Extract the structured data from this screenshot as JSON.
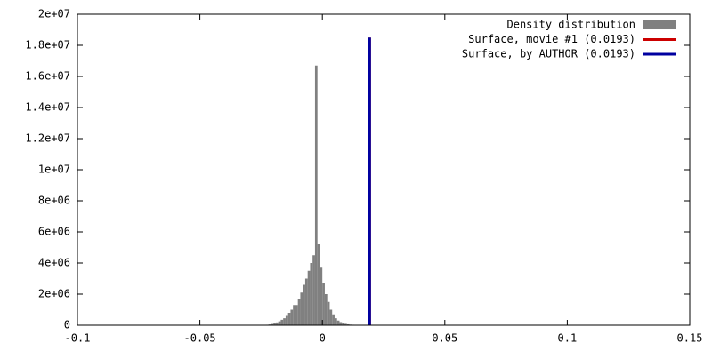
{
  "chart_data": {
    "type": "histogram",
    "name": "Density distribution",
    "color": "#808080",
    "bins": [
      -0.025,
      -0.024,
      -0.023,
      -0.022,
      -0.021,
      -0.02,
      -0.019,
      -0.018,
      -0.017,
      -0.016,
      -0.015,
      -0.014,
      -0.013,
      -0.012,
      -0.011,
      -0.01,
      -0.009,
      -0.008,
      -0.007,
      -0.006,
      -0.005,
      -0.004,
      -0.003,
      -0.002,
      -0.001,
      0,
      0.001,
      0.002,
      0.003,
      0.004,
      0.005,
      0.006,
      0.007,
      0.008,
      0.009,
      0.01,
      0.011,
      0.012,
      0.013,
      0.014,
      0.015,
      0.016,
      0.017,
      0.018,
      0.019,
      0.02,
      0.021,
      0.022,
      0.023,
      0.024,
      0.025
    ],
    "values": [
      10000,
      20000,
      30000,
      50000,
      80000,
      120000,
      180000,
      250000,
      350000,
      450000,
      600000,
      800000,
      1000000,
      1300000,
      1300000,
      1700000,
      2100000,
      2600000,
      3000000,
      3500000,
      4000000,
      4500000,
      16700000,
      5200000,
      3700000,
      2700000,
      2000000,
      1500000,
      1000000,
      700000,
      450000,
      300000,
      200000,
      130000,
      90000,
      60000,
      40000,
      30000,
      20000,
      15000,
      10000,
      8000,
      6000,
      5000,
      4000,
      3000,
      2000,
      2000,
      1000,
      1000
    ],
    "lines": [
      {
        "name": "Surface, movie #1 (0.0193)",
        "color": "#cc0000",
        "x": 0.0193,
        "ymax": 18500000
      },
      {
        "name": "Surface, by AUTHOR (0.0193)",
        "color": "#0000a0",
        "x": 0.0193,
        "ymax": 18500000
      }
    ],
    "xlim": [
      -0.1,
      0.15
    ],
    "xticks": [
      -0.1,
      -0.05,
      0,
      0.05,
      0.1,
      0.15
    ],
    "ylim": [
      0,
      20000000
    ],
    "yticks": [
      0,
      {
        "value": 2000000,
        "label": "2e+06"
      },
      {
        "value": 4000000,
        "label": "4e+06"
      },
      {
        "value": 6000000,
        "label": "6e+06"
      },
      {
        "value": 8000000,
        "label": "8e+06"
      },
      {
        "value": 10000000,
        "label": "1e+07"
      },
      {
        "value": 12000000,
        "label": "1.2e+07"
      },
      {
        "value": 14000000,
        "label": "1.4e+07"
      },
      {
        "value": 16000000,
        "label": "1.6e+07"
      },
      {
        "value": 18000000,
        "label": "1.8e+07"
      },
      {
        "value": 20000000,
        "label": "2e+07"
      }
    ],
    "legend": "top-right"
  }
}
